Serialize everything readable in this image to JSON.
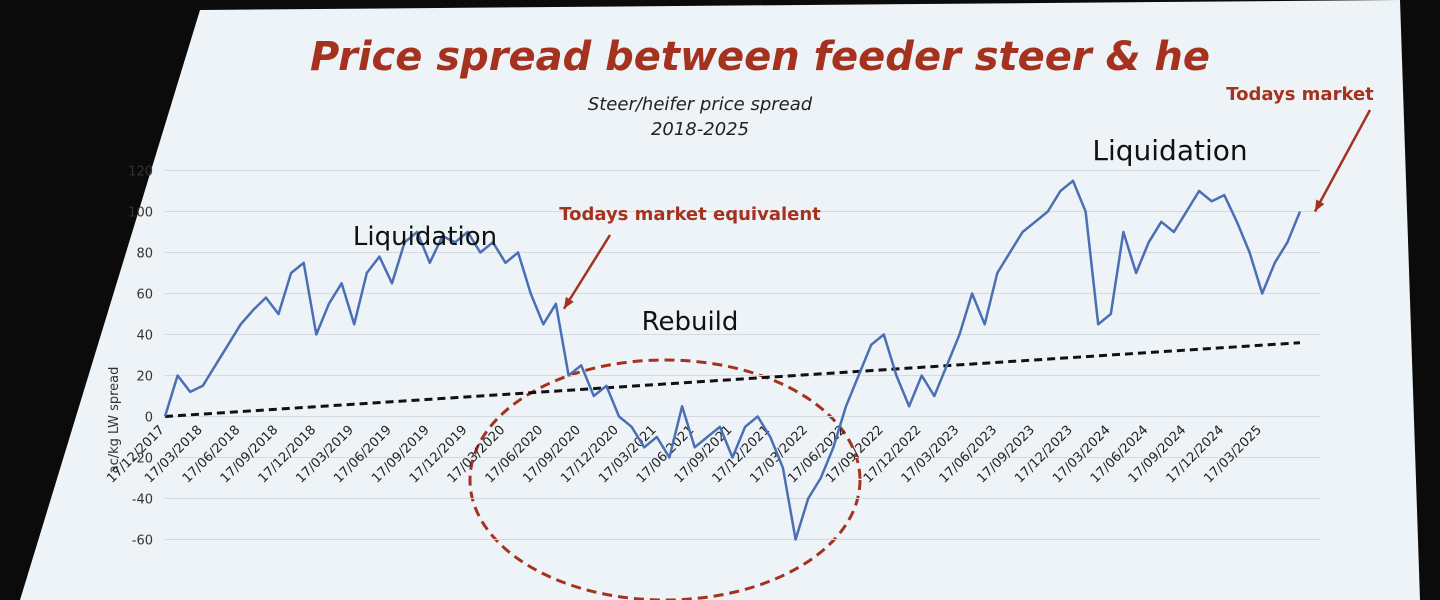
{
  "chart_data": {
    "type": "line",
    "title": "Price spread between feeder steer & he",
    "subtitle": [
      "Steer/heifer price spread",
      "2018-2025"
    ],
    "y_label": "ac/kg LW spread",
    "annotations": [
      "Liquidation",
      "Liquidation",
      "Rebuild",
      "Todays market equivalent",
      "Todays market"
    ],
    "categories": [
      "17/12/2017",
      null,
      null,
      "17/03/2018",
      null,
      null,
      "17/06/2018",
      null,
      null,
      "17/09/2018",
      null,
      null,
      "17/12/2018",
      null,
      null,
      "17/03/2019",
      null,
      null,
      "17/06/2019",
      null,
      null,
      "17/09/2019",
      null,
      null,
      "17/12/2019",
      null,
      null,
      "17/03/2020",
      null,
      null,
      "17/06/2020",
      null,
      null,
      "17/09/2020",
      null,
      null,
      "17/12/2020",
      null,
      null,
      "17/03/2021",
      null,
      null,
      "17/06/2021",
      null,
      null,
      "17/09/2021",
      null,
      null,
      "17/12/2021",
      null,
      null,
      "17/03/2022",
      null,
      null,
      "17/06/2022",
      null,
      null,
      "17/09/2022",
      null,
      null,
      "17/12/2022",
      null,
      null,
      "17/03/2023",
      null,
      null,
      "17/06/2023",
      null,
      null,
      "17/09/2023",
      null,
      null,
      "17/12/2023",
      null,
      null,
      "17/03/2024",
      null,
      null,
      "17/06/2024",
      null,
      null,
      "17/09/2024",
      null,
      null,
      "17/12/2024",
      null,
      null,
      "17/03/2025",
      null,
      null,
      null
    ],
    "series": [
      {
        "color": "#4a6fb5",
        "values": [
          0,
          20,
          12,
          15,
          25,
          35,
          45,
          52,
          58,
          50,
          70,
          75,
          40,
          55,
          65,
          45,
          70,
          78,
          65,
          85,
          90,
          75,
          88,
          85,
          90,
          80,
          85,
          75,
          80,
          60,
          45,
          55,
          20,
          25,
          10,
          15,
          0,
          -5,
          -15,
          -10,
          -20,
          5,
          -15,
          -10,
          -5,
          -20,
          -5,
          0,
          -10,
          -25,
          -60,
          -40,
          -30,
          -15,
          5,
          20,
          35,
          40,
          20,
          5,
          20,
          10,
          25,
          40,
          60,
          45,
          70,
          80,
          90,
          95,
          100,
          110,
          115,
          100,
          45,
          50,
          90,
          70,
          85,
          95,
          90,
          100,
          110,
          105,
          108,
          95,
          80,
          60,
          75,
          85,
          100
        ]
      }
    ],
    "trend_line": {
      "color": "#111111",
      "values": [
        0,
        36
      ]
    },
    "ylim": [
      -70,
      130
    ],
    "yticks": [
      -60,
      -40,
      -20,
      0,
      20,
      40,
      60,
      80,
      100,
      120
    ],
    "grid": true
  }
}
